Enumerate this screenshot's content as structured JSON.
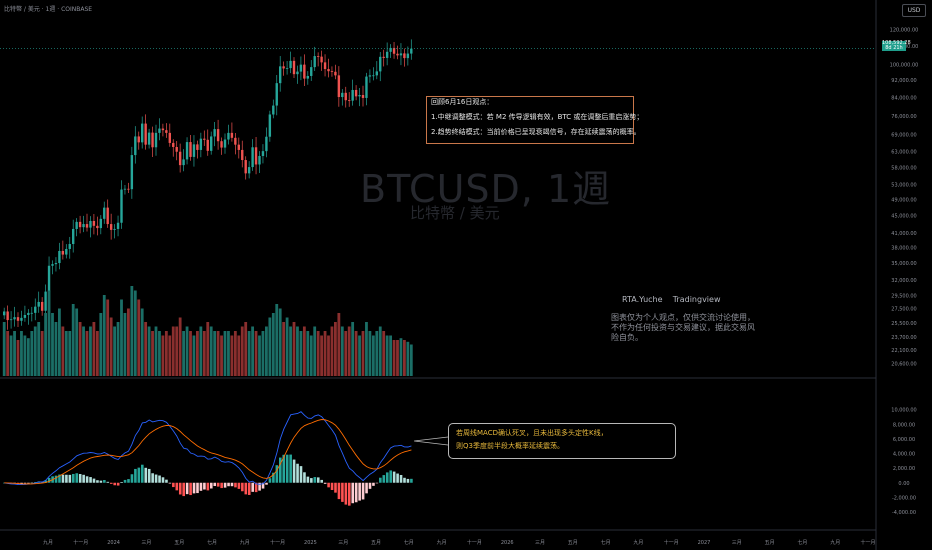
{
  "header": {
    "title": "比特幣 / 美元 · 1週 · COINBASE",
    "currency_button": "USD"
  },
  "colors": {
    "background": "#000000",
    "up": "#26a69a",
    "down": "#ef5350",
    "macd_line": "#2962ff",
    "signal_line": "#ff6d00",
    "hist_up": "#26a69a",
    "hist_down": "#ff5252",
    "note_border": "#c9774a"
  },
  "watermark": {
    "title": "BTCUSD, 1週",
    "subtitle": "比特幣 / 美元"
  },
  "note": {
    "title": "回顾6月16日观点：",
    "line1": "1.中继调整模式：若 M2 传导逻辑有效，BTC 或在调整后重启涨势；",
    "line2": "2.趋势终结模式：当前价格已呈现衰竭信号，存在延续震荡的概率。"
  },
  "author": "RTA.Yuche    Tradingview",
  "disclaimer": "图表仅为个人观点，仅供交流讨论使用，不作为任何投资与交易建议，据此交易风险自负。",
  "callout": {
    "line1": "若周线MACD确认死叉，且未出现多头定性K线，",
    "line2": "则Q3季度前半段大概率延续震荡。"
  },
  "last_price": {
    "price": "108,592.28",
    "change": "8d 21h"
  },
  "chart_data": [
    {
      "type": "candlestick",
      "title": "BTCUSD, 1週",
      "y_scale": "log",
      "ylim": [
        20000,
        125000
      ],
      "y_ticks": [
        "120,000.00",
        "110,000.00",
        "100,000.00",
        "92,000.00",
        "84,000.00",
        "76,000.00",
        "69,000.00",
        "63,000.00",
        "58,000.00",
        "53,000.00",
        "49,000.00",
        "45,000.00",
        "41,000.00",
        "38,000.00",
        "35,000.00",
        "32,000.00",
        "29,500.00",
        "27,500.00",
        "25,500.00",
        "23,700.00",
        "22,100.00",
        "20,600.00"
      ],
      "x_ticks": [
        "九月",
        "十一月",
        "2024",
        "三月",
        "五月",
        "七月",
        "九月",
        "十一月",
        "2025",
        "三月",
        "五月",
        "七月",
        "九月",
        "十一月",
        "2026",
        "三月",
        "五月",
        "七月",
        "九月",
        "十一月",
        "2027",
        "三月",
        "五月",
        "七月",
        "九月",
        "十一月"
      ],
      "last_price": 108592.28,
      "closes": [
        27100,
        25900,
        26000,
        26300,
        25800,
        26200,
        26600,
        26900,
        26900,
        27800,
        28500,
        27200,
        30100,
        34500,
        34800,
        35000,
        37300,
        36600,
        37700,
        38700,
        41900,
        43500,
        42300,
        43000,
        42200,
        43700,
        42600,
        42100,
        44200,
        46900,
        43000,
        41700,
        41900,
        43300,
        51600,
        51800,
        51700,
        61900,
        68300,
        66200,
        73100,
        65400,
        69700,
        64500,
        69600,
        71200,
        70600,
        69600,
        66000,
        64600,
        63000,
        58700,
        60500,
        66300,
        61300,
        65500,
        63600,
        67500,
        67100,
        63300,
        68300,
        71000,
        66600,
        64400,
        67200,
        69600,
        67800,
        65400,
        63600,
        60300,
        56200,
        58100,
        64500,
        58900,
        61600,
        63200,
        68200,
        76700,
        80400,
        90500,
        98900,
        97800,
        98000,
        101800,
        94900,
        96200,
        99800,
        92700,
        94000,
        98500,
        104400,
        104100,
        101000,
        97500,
        96400,
        96100,
        94300,
        84100,
        86000,
        82700,
        82500,
        87300,
        84400,
        85000,
        83700,
        93700,
        94300,
        94300,
        96300,
        104000,
        103400,
        106800,
        109000,
        105700,
        104800,
        105900,
        103300,
        105800,
        108592
      ],
      "volume_relative": [
        0.6,
        0.5,
        0.45,
        0.5,
        0.4,
        0.5,
        0.45,
        0.42,
        0.5,
        0.55,
        0.6,
        0.5,
        0.7,
        0.95,
        0.7,
        0.6,
        0.75,
        0.55,
        0.5,
        0.5,
        0.8,
        0.75,
        0.6,
        0.55,
        0.5,
        0.55,
        0.6,
        0.5,
        0.7,
        0.9,
        0.85,
        0.65,
        0.55,
        0.6,
        0.85,
        0.7,
        0.75,
        1.0,
        0.95,
        0.85,
        0.75,
        0.6,
        0.55,
        0.5,
        0.55,
        0.5,
        0.45,
        0.5,
        0.45,
        0.55,
        0.55,
        0.65,
        0.5,
        0.55,
        0.5,
        0.45,
        0.5,
        0.55,
        0.5,
        0.6,
        0.55,
        0.5,
        0.5,
        0.45,
        0.5,
        0.5,
        0.45,
        0.5,
        0.45,
        0.55,
        0.6,
        0.5,
        0.55,
        0.5,
        0.45,
        0.5,
        0.55,
        0.65,
        0.7,
        0.8,
        0.75,
        0.6,
        0.65,
        0.55,
        0.6,
        0.55,
        0.5,
        0.55,
        0.5,
        0.45,
        0.55,
        0.5,
        0.45,
        0.5,
        0.45,
        0.55,
        0.6,
        0.7,
        0.55,
        0.5,
        0.55,
        0.6,
        0.5,
        0.45,
        0.5,
        0.6,
        0.5,
        0.45,
        0.5,
        0.55,
        0.5,
        0.45,
        0.45,
        0.4,
        0.4,
        0.42,
        0.4,
        0.38,
        0.35
      ]
    },
    {
      "type": "line",
      "title": "MACD",
      "ylim": [
        -4000,
        12000
      ],
      "y_ticks": [
        "10,000.00",
        "8,000.00",
        "6,000.00",
        "4,000.00",
        "2,000.00",
        "0.00",
        "-2,000.00",
        "-4,000.00"
      ]
    }
  ]
}
